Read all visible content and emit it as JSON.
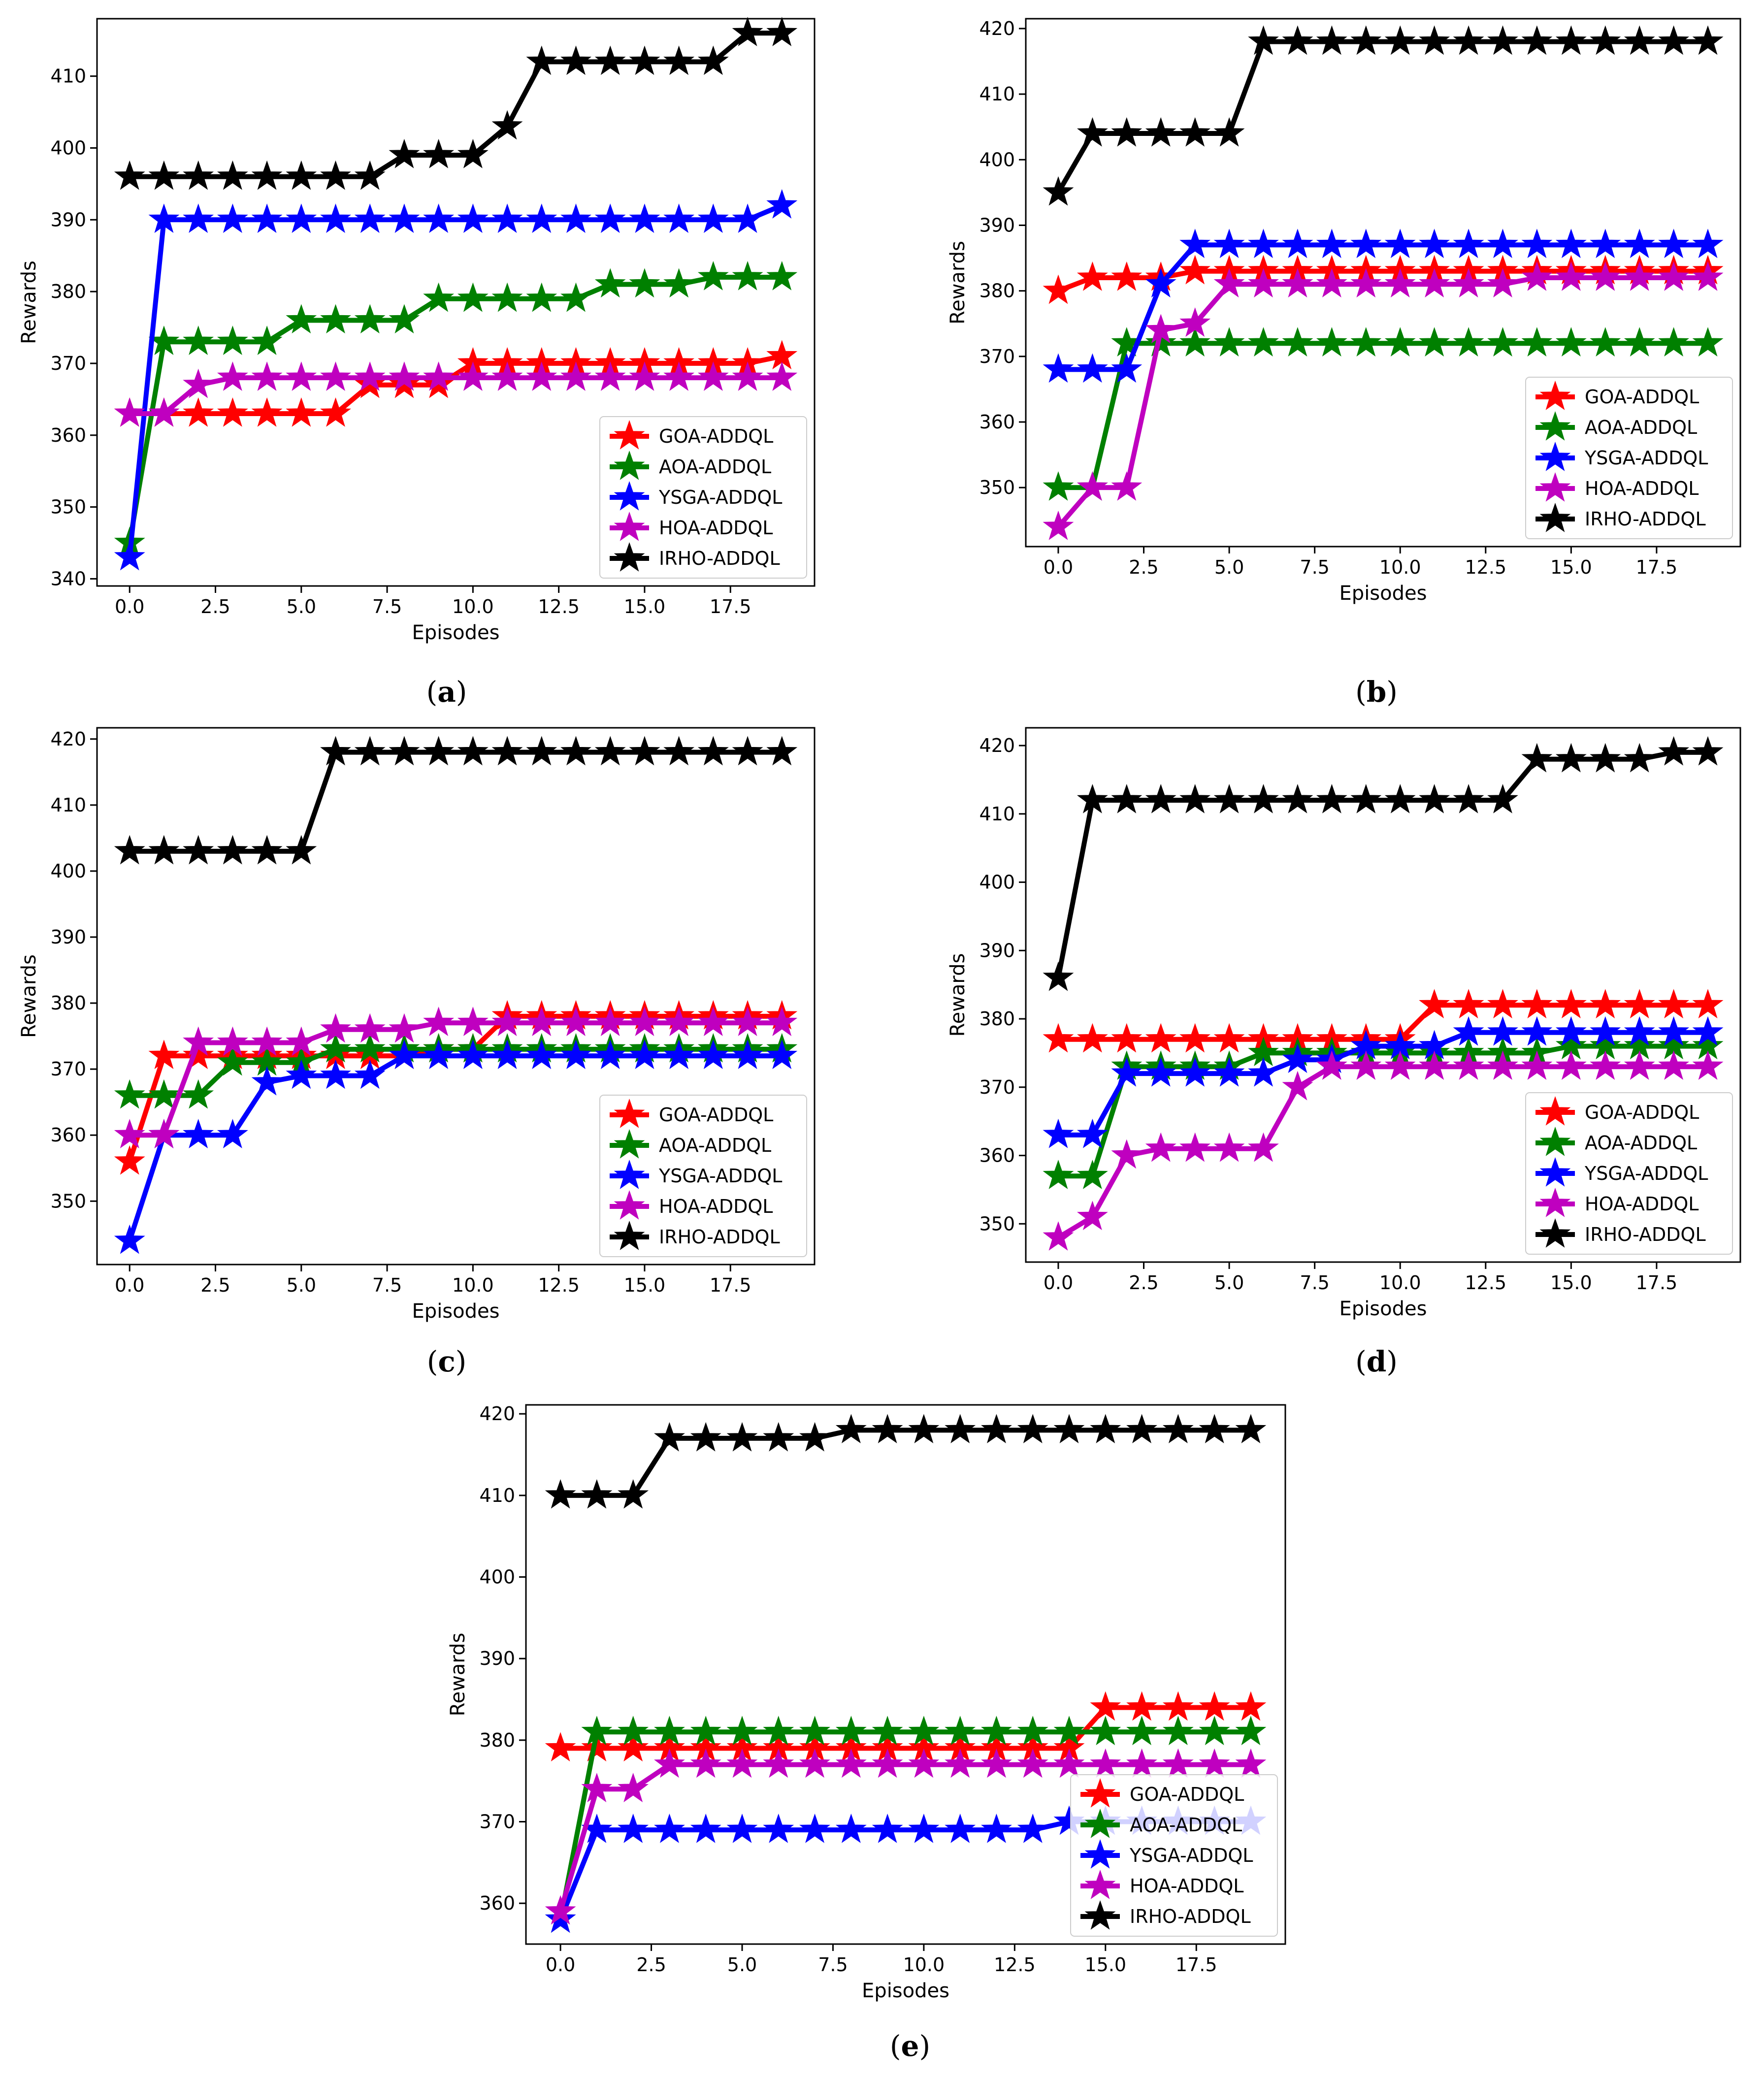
{
  "chart_data": [
    {
      "type": "line",
      "caption": "(a)",
      "caption_letter": "a",
      "xlabel": "Episodes",
      "ylabel": "Rewards",
      "xlim": [
        -0.95,
        19.95
      ],
      "ylim": [
        339,
        418
      ],
      "xticks": [
        "0.0",
        "2.5",
        "5.0",
        "7.5",
        "10.0",
        "12.5",
        "15.0",
        "17.5"
      ],
      "yticks": [
        "340",
        "350",
        "360",
        "370",
        "380",
        "390",
        "400",
        "410"
      ],
      "legend_position": "lower-right",
      "x": [
        0,
        1,
        2,
        3,
        4,
        5,
        6,
        7,
        8,
        9,
        10,
        11,
        12,
        13,
        14,
        15,
        16,
        17,
        18,
        19
      ],
      "series": [
        {
          "name": "GOA-ADDQL",
          "color": "#ff0000",
          "values": [
            363,
            363,
            363,
            363,
            363,
            363,
            363,
            367,
            367,
            367,
            370,
            370,
            370,
            370,
            370,
            370,
            370,
            370,
            370,
            371
          ]
        },
        {
          "name": "AOA-ADDQL",
          "color": "#008000",
          "values": [
            345,
            373,
            373,
            373,
            373,
            376,
            376,
            376,
            376,
            379,
            379,
            379,
            379,
            379,
            381,
            381,
            381,
            382,
            382,
            382
          ]
        },
        {
          "name": "YSGA-ADDQL",
          "color": "#0000ff",
          "values": [
            343,
            390,
            390,
            390,
            390,
            390,
            390,
            390,
            390,
            390,
            390,
            390,
            390,
            390,
            390,
            390,
            390,
            390,
            390,
            392
          ]
        },
        {
          "name": "HOA-ADDQL",
          "color": "#bf00bf",
          "values": [
            363,
            363,
            367,
            368,
            368,
            368,
            368,
            368,
            368,
            368,
            368,
            368,
            368,
            368,
            368,
            368,
            368,
            368,
            368,
            368
          ]
        },
        {
          "name": "IRHO-ADDQL",
          "color": "#000000",
          "values": [
            396,
            396,
            396,
            396,
            396,
            396,
            396,
            396,
            399,
            399,
            399,
            403,
            412,
            412,
            412,
            412,
            412,
            412,
            416,
            416
          ]
        }
      ]
    },
    {
      "type": "line",
      "caption": "(b)",
      "caption_letter": "b",
      "xlabel": "Episodes",
      "ylabel": "Rewards",
      "xlim": [
        -0.95,
        19.95
      ],
      "ylim": [
        341,
        421.5
      ],
      "xticks": [
        "0.0",
        "2.5",
        "5.0",
        "7.5",
        "10.0",
        "12.5",
        "15.0",
        "17.5"
      ],
      "yticks": [
        "350",
        "360",
        "370",
        "380",
        "390",
        "400",
        "410",
        "420"
      ],
      "legend_position": "lower-right",
      "x": [
        0,
        1,
        2,
        3,
        4,
        5,
        6,
        7,
        8,
        9,
        10,
        11,
        12,
        13,
        14,
        15,
        16,
        17,
        18,
        19
      ],
      "series": [
        {
          "name": "GOA-ADDQL",
          "color": "#ff0000",
          "values": [
            380,
            382,
            382,
            382,
            383,
            383,
            383,
            383,
            383,
            383,
            383,
            383,
            383,
            383,
            383,
            383,
            383,
            383,
            383,
            383
          ]
        },
        {
          "name": "AOA-ADDQL",
          "color": "#008000",
          "values": [
            350,
            350,
            372,
            372,
            372,
            372,
            372,
            372,
            372,
            372,
            372,
            372,
            372,
            372,
            372,
            372,
            372,
            372,
            372,
            372
          ]
        },
        {
          "name": "YSGA-ADDQL",
          "color": "#0000ff",
          "values": [
            368,
            368,
            368,
            381,
            387,
            387,
            387,
            387,
            387,
            387,
            387,
            387,
            387,
            387,
            387,
            387,
            387,
            387,
            387,
            387
          ]
        },
        {
          "name": "HOA-ADDQL",
          "color": "#bf00bf",
          "values": [
            344,
            350,
            350,
            374,
            375,
            381,
            381,
            381,
            381,
            381,
            381,
            381,
            381,
            381,
            382,
            382,
            382,
            382,
            382,
            382
          ]
        },
        {
          "name": "IRHO-ADDQL",
          "color": "#000000",
          "values": [
            395,
            404,
            404,
            404,
            404,
            404,
            418,
            418,
            418,
            418,
            418,
            418,
            418,
            418,
            418,
            418,
            418,
            418,
            418,
            418
          ]
        }
      ]
    },
    {
      "type": "line",
      "caption": "(c)",
      "caption_letter": "c",
      "xlabel": "Episodes",
      "ylabel": "Rewards",
      "xlim": [
        -0.95,
        19.95
      ],
      "ylim": [
        340.4,
        421.7
      ],
      "xticks": [
        "0.0",
        "2.5",
        "5.0",
        "7.5",
        "10.0",
        "12.5",
        "15.0",
        "17.5"
      ],
      "yticks": [
        "350",
        "360",
        "370",
        "380",
        "390",
        "400",
        "410",
        "420"
      ],
      "legend_position": "lower-right",
      "x": [
        0,
        1,
        2,
        3,
        4,
        5,
        6,
        7,
        8,
        9,
        10,
        11,
        12,
        13,
        14,
        15,
        16,
        17,
        18,
        19
      ],
      "series": [
        {
          "name": "GOA-ADDQL",
          "color": "#ff0000",
          "values": [
            356,
            372,
            372,
            372,
            372,
            372,
            372,
            372,
            372,
            373,
            373,
            378,
            378,
            378,
            378,
            378,
            378,
            378,
            378,
            378
          ]
        },
        {
          "name": "AOA-ADDQL",
          "color": "#008000",
          "values": [
            366,
            366,
            366,
            371,
            371,
            371,
            373,
            373,
            373,
            373,
            373,
            373,
            373,
            373,
            373,
            373,
            373,
            373,
            373,
            373
          ]
        },
        {
          "name": "YSGA-ADDQL",
          "color": "#0000ff",
          "values": [
            344,
            360,
            360,
            360,
            368,
            369,
            369,
            369,
            372,
            372,
            372,
            372,
            372,
            372,
            372,
            372,
            372,
            372,
            372,
            372
          ]
        },
        {
          "name": "HOA-ADDQL",
          "color": "#bf00bf",
          "values": [
            360,
            360,
            374,
            374,
            374,
            374,
            376,
            376,
            376,
            377,
            377,
            377,
            377,
            377,
            377,
            377,
            377,
            377,
            377,
            377
          ]
        },
        {
          "name": "IRHO-ADDQL",
          "color": "#000000",
          "values": [
            403,
            403,
            403,
            403,
            403,
            403,
            418,
            418,
            418,
            418,
            418,
            418,
            418,
            418,
            418,
            418,
            418,
            418,
            418,
            418
          ]
        }
      ]
    },
    {
      "type": "line",
      "caption": "(d)",
      "caption_letter": "d",
      "xlabel": "Episodes",
      "ylabel": "Rewards",
      "xlim": [
        -0.95,
        19.95
      ],
      "ylim": [
        344.4,
        422.6
      ],
      "xticks": [
        "0.0",
        "2.5",
        "5.0",
        "7.5",
        "10.0",
        "12.5",
        "15.0",
        "17.5"
      ],
      "yticks": [
        "350",
        "360",
        "370",
        "380",
        "390",
        "400",
        "410",
        "420"
      ],
      "legend_position": "lower-right",
      "x": [
        0,
        1,
        2,
        3,
        4,
        5,
        6,
        7,
        8,
        9,
        10,
        11,
        12,
        13,
        14,
        15,
        16,
        17,
        18,
        19
      ],
      "series": [
        {
          "name": "GOA-ADDQL",
          "color": "#ff0000",
          "values": [
            377,
            377,
            377,
            377,
            377,
            377,
            377,
            377,
            377,
            377,
            377,
            382,
            382,
            382,
            382,
            382,
            382,
            382,
            382,
            382
          ]
        },
        {
          "name": "AOA-ADDQL",
          "color": "#008000",
          "values": [
            357,
            357,
            373,
            373,
            373,
            373,
            375,
            375,
            375,
            375,
            375,
            375,
            375,
            375,
            375,
            376,
            376,
            376,
            376,
            376
          ]
        },
        {
          "name": "YSGA-ADDQL",
          "color": "#0000ff",
          "values": [
            363,
            363,
            372,
            372,
            372,
            372,
            372,
            374,
            374,
            376,
            376,
            376,
            378,
            378,
            378,
            378,
            378,
            378,
            378,
            378
          ]
        },
        {
          "name": "HOA-ADDQL",
          "color": "#bf00bf",
          "values": [
            348,
            351,
            360,
            361,
            361,
            361,
            361,
            370,
            373,
            373,
            373,
            373,
            373,
            373,
            373,
            373,
            373,
            373,
            373,
            373
          ]
        },
        {
          "name": "IRHO-ADDQL",
          "color": "#000000",
          "values": [
            386,
            412,
            412,
            412,
            412,
            412,
            412,
            412,
            412,
            412,
            412,
            412,
            412,
            412,
            418,
            418,
            418,
            418,
            419,
            419
          ]
        }
      ]
    },
    {
      "type": "line",
      "caption": "(e)",
      "caption_letter": "e",
      "xlabel": "Episodes",
      "ylabel": "Rewards",
      "xlim": [
        -0.95,
        19.95
      ],
      "ylim": [
        355,
        421.1
      ],
      "xticks": [
        "0.0",
        "2.5",
        "5.0",
        "7.5",
        "10.0",
        "12.5",
        "15.0",
        "17.5"
      ],
      "yticks": [
        "360",
        "370",
        "380",
        "390",
        "400",
        "410",
        "420"
      ],
      "legend_position": "lower-right",
      "x": [
        0,
        1,
        2,
        3,
        4,
        5,
        6,
        7,
        8,
        9,
        10,
        11,
        12,
        13,
        14,
        15,
        16,
        17,
        18,
        19
      ],
      "series": [
        {
          "name": "GOA-ADDQL",
          "color": "#ff0000",
          "values": [
            379,
            379,
            379,
            379,
            379,
            379,
            379,
            379,
            379,
            379,
            379,
            379,
            379,
            379,
            379,
            384,
            384,
            384,
            384,
            384
          ]
        },
        {
          "name": "AOA-ADDQL",
          "color": "#008000",
          "values": [
            358,
            381,
            381,
            381,
            381,
            381,
            381,
            381,
            381,
            381,
            381,
            381,
            381,
            381,
            381,
            381,
            381,
            381,
            381,
            381
          ]
        },
        {
          "name": "YSGA-ADDQL",
          "color": "#0000ff",
          "values": [
            358,
            369,
            369,
            369,
            369,
            369,
            369,
            369,
            369,
            369,
            369,
            369,
            369,
            369,
            370,
            370,
            370,
            370,
            370,
            370
          ]
        },
        {
          "name": "HOA-ADDQL",
          "color": "#bf00bf",
          "values": [
            359,
            374,
            374,
            377,
            377,
            377,
            377,
            377,
            377,
            377,
            377,
            377,
            377,
            377,
            377,
            377,
            377,
            377,
            377,
            377
          ]
        },
        {
          "name": "IRHO-ADDQL",
          "color": "#000000",
          "values": [
            410,
            410,
            410,
            417,
            417,
            417,
            417,
            417,
            418,
            418,
            418,
            418,
            418,
            418,
            418,
            418,
            418,
            418,
            418,
            418
          ]
        }
      ]
    }
  ]
}
